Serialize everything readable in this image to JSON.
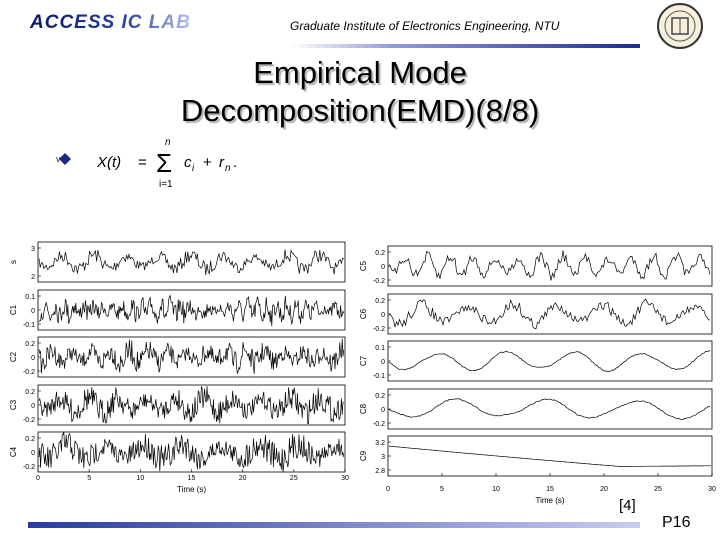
{
  "header": {
    "lab": "ACCESS IC LAB",
    "institute": "Graduate Institute of Electronics Engineering, NTU"
  },
  "title": [
    "Empirical Mode",
    "Decomposition(EMD)(8/8)"
  ],
  "formula": {
    "lhs": "X(t)",
    "equals": "=",
    "sum_upper": "n",
    "sum_lower": "i=1",
    "term": "c",
    "term_sub": "i",
    "plus": "+",
    "rest": "r",
    "rest_sub": "n",
    "end": "."
  },
  "figure": {
    "left_panels": [
      {
        "label": "s",
        "yticks": [
          "3",
          "2"
        ]
      },
      {
        "label": "C1",
        "yticks": [
          "0.1",
          "0",
          "-0.1"
        ]
      },
      {
        "label": "C2",
        "yticks": [
          "0.2",
          "0",
          "-0.2"
        ]
      },
      {
        "label": "C3",
        "yticks": [
          "0.2",
          "0",
          "-0.2"
        ]
      },
      {
        "label": "C4",
        "yticks": [
          "0.2",
          "0",
          "-0.2"
        ]
      }
    ],
    "right_panels": [
      {
        "label": "C5",
        "yticks": [
          "0.2",
          "0",
          "-0.2"
        ]
      },
      {
        "label": "C6",
        "yticks": [
          "0.2",
          "0",
          "-0.2"
        ]
      },
      {
        "label": "C7",
        "yticks": [
          "0.1",
          "0",
          "-0.1"
        ]
      },
      {
        "label": "C8",
        "yticks": [
          "0.2",
          "0",
          "-0.2"
        ]
      },
      {
        "label": "C9",
        "yticks": [
          "3.2",
          "3",
          "2.8"
        ]
      }
    ],
    "xticks": [
      "0",
      "5",
      "10",
      "15",
      "20",
      "25",
      "30"
    ],
    "xlabel": "Time (s)"
  },
  "citation": "[4]",
  "page": "P16"
}
